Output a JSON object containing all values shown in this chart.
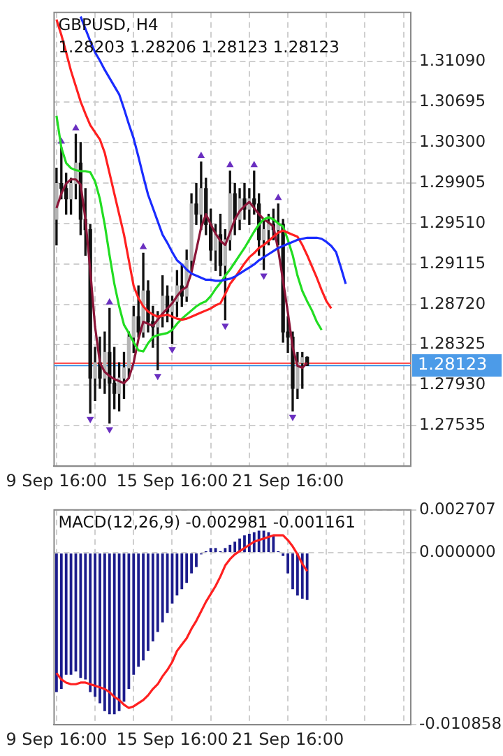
{
  "chart_data": [
    {
      "type": "candlestick",
      "title": "GBPUSD, H4",
      "subtitle": "1.28203 1.28206 1.28123 1.28123",
      "categories": [
        "9 Sep 16:00",
        null,
        null,
        null,
        null,
        null,
        null,
        null,
        null,
        null,
        null,
        null,
        null,
        null,
        null,
        null,
        null,
        null,
        null,
        null,
        null,
        null,
        null,
        null,
        "15 Sep 16:00",
        null,
        null,
        null,
        null,
        null,
        null,
        null,
        null,
        null,
        null,
        null,
        null,
        null,
        null,
        null,
        null,
        null,
        null,
        null,
        null,
        null,
        null,
        null,
        "21 Sep 16:00",
        null,
        null,
        null,
        null,
        null,
        null,
        null,
        null,
        null,
        null,
        null,
        null,
        null,
        null,
        null,
        null,
        null,
        null,
        null,
        null,
        null,
        null,
        null,
        null,
        null
      ],
      "ohlc": [
        [
          1.2955,
          1.3005,
          1.293,
          1.299
        ],
        [
          1.299,
          1.3025,
          1.2975,
          1.2985
        ],
        [
          1.2985,
          1.3,
          1.296,
          1.2975
        ],
        [
          1.2975,
          1.2995,
          1.296,
          1.299
        ],
        [
          1.299,
          1.3038,
          1.2975,
          1.301
        ],
        [
          1.301,
          1.303,
          1.294,
          1.2955
        ],
        [
          1.2955,
          1.2985,
          1.292,
          1.2945
        ],
        [
          1.2945,
          1.295,
          1.2766,
          1.28
        ],
        [
          1.28,
          1.283,
          1.2778,
          1.2815
        ],
        [
          1.2815,
          1.284,
          1.279,
          1.28
        ],
        [
          1.28,
          1.2845,
          1.2785,
          1.2825
        ],
        [
          1.2825,
          1.2868,
          1.2756,
          1.2795
        ],
        [
          1.2795,
          1.283,
          1.277,
          1.2785
        ],
        [
          1.2785,
          1.2815,
          1.2768,
          1.28
        ],
        [
          1.28,
          1.2825,
          1.278,
          1.281
        ],
        [
          1.281,
          1.2845,
          1.28,
          1.284
        ],
        [
          1.284,
          1.287,
          1.2825,
          1.286
        ],
        [
          1.286,
          1.289,
          1.284,
          1.2845
        ],
        [
          1.2845,
          1.2922,
          1.284,
          1.2885
        ],
        [
          1.2885,
          1.2895,
          1.2845,
          1.2855
        ],
        [
          1.2855,
          1.287,
          1.283,
          1.285
        ],
        [
          1.285,
          1.2865,
          1.2808,
          1.286
        ],
        [
          1.286,
          1.29,
          1.285,
          1.288
        ],
        [
          1.288,
          1.289,
          1.2855,
          1.2865
        ],
        [
          1.2865,
          1.288,
          1.2834,
          1.2875
        ],
        [
          1.2875,
          1.2905,
          1.286,
          1.289
        ],
        [
          1.289,
          1.291,
          1.287,
          1.288
        ],
        [
          1.288,
          1.2925,
          1.2875,
          1.2915
        ],
        [
          1.2915,
          1.298,
          1.2905,
          1.297
        ],
        [
          1.297,
          1.299,
          1.295,
          1.296
        ],
        [
          1.296,
          1.3011,
          1.2945,
          1.2985
        ],
        [
          1.2985,
          1.2995,
          1.294,
          1.295
        ],
        [
          1.295,
          1.2965,
          1.2915,
          1.2925
        ],
        [
          1.2925,
          1.295,
          1.2905,
          1.294
        ],
        [
          1.294,
          1.296,
          1.29,
          1.291
        ],
        [
          1.291,
          1.2945,
          1.2857,
          1.2935
        ],
        [
          1.2935,
          1.3002,
          1.2925,
          1.298
        ],
        [
          1.298,
          1.299,
          1.294,
          1.2955
        ],
        [
          1.2955,
          1.2985,
          1.2945,
          1.2975
        ],
        [
          1.2975,
          1.299,
          1.2955,
          1.2965
        ],
        [
          1.2965,
          1.2985,
          1.295,
          1.2975
        ],
        [
          1.2975,
          1.3002,
          1.296,
          1.297
        ],
        [
          1.297,
          1.298,
          1.292,
          1.2935
        ],
        [
          1.2935,
          1.2955,
          1.2906,
          1.2945
        ],
        [
          1.2945,
          1.296,
          1.293,
          1.295
        ],
        [
          1.295,
          1.2965,
          1.2935,
          1.2945
        ],
        [
          1.2945,
          1.297,
          1.293,
          1.295
        ],
        [
          1.295,
          1.2955,
          1.2835,
          1.2845
        ],
        [
          1.2845,
          1.286,
          1.2825,
          1.284
        ],
        [
          1.284,
          1.2845,
          1.2768,
          1.279
        ],
        [
          1.279,
          1.2825,
          1.278,
          1.2815
        ],
        [
          1.2815,
          1.2825,
          1.279,
          1.282
        ],
        [
          1.28203,
          1.28206,
          1.28123,
          1.28123
        ],
        null,
        null,
        null,
        null,
        null,
        null,
        null,
        null,
        null,
        null,
        null,
        null,
        null,
        null,
        null,
        null,
        null,
        null,
        null,
        null,
        null
      ],
      "series": [
        {
          "type": "line",
          "color": "#1a2cff",
          "values": [
            null,
            null,
            null,
            null,
            null,
            1.3153,
            1.3141,
            1.3129,
            1.3118,
            1.311,
            1.3101,
            1.3093,
            1.3085,
            1.3077,
            1.3063,
            1.3048,
            1.3034,
            1.3016,
            1.2997,
            1.2979,
            1.2966,
            1.2953,
            1.294,
            1.2932,
            1.2923,
            1.2915,
            1.2911,
            1.2906,
            1.2902,
            1.29,
            1.2898,
            1.2896,
            1.2896,
            1.2895,
            1.2895,
            1.2896,
            1.2897,
            1.2899,
            1.2902,
            1.2905,
            1.2908,
            1.2911,
            1.2915,
            1.2918,
            1.2921,
            1.2924,
            1.2927,
            1.2929,
            1.2931,
            1.2933,
            1.2935,
            1.2936,
            1.2937,
            1.2937,
            1.2937,
            1.2936,
            1.2933,
            1.2929,
            1.2923,
            1.2908,
            1.2892,
            null,
            null,
            null,
            null,
            null,
            null,
            null,
            null,
            null,
            null,
            null,
            null,
            null
          ]
        },
        {
          "type": "line",
          "color": "#ff2020",
          "values": [
            1.315,
            1.3135,
            1.3118,
            1.31,
            1.3085,
            1.307,
            1.3058,
            1.3047,
            1.304,
            1.3033,
            1.302,
            1.3,
            1.298,
            1.296,
            1.294,
            1.2915,
            1.289,
            1.2878,
            1.287,
            1.2865,
            1.2862,
            1.286,
            1.2861,
            1.2862,
            1.286,
            1.2858,
            1.2857,
            1.2858,
            1.286,
            1.2862,
            1.2864,
            1.2866,
            1.2868,
            1.2871,
            1.2873,
            1.2882,
            1.2892,
            1.2898,
            1.2905,
            1.2912,
            1.2918,
            1.2922,
            1.2927,
            1.293,
            1.2934,
            1.2938,
            1.2942,
            1.2944,
            1.2942,
            1.294,
            1.2938,
            1.293,
            1.292,
            1.2909,
            1.2898,
            1.2886,
            1.2875,
            1.2868,
            null,
            null,
            null,
            null,
            null,
            null,
            null,
            null,
            null,
            null,
            null,
            null,
            null,
            null,
            null,
            null
          ]
        },
        {
          "type": "line",
          "color": "#22dd22",
          "values": [
            1.3056,
            1.3025,
            1.301,
            1.3005,
            1.3003,
            1.3002,
            1.3002,
            1.3001,
            1.2992,
            1.2975,
            1.295,
            1.292,
            1.2892,
            1.287,
            1.2852,
            1.2844,
            1.2835,
            1.2827,
            1.2826,
            1.2834,
            1.284,
            1.2842,
            1.2843,
            1.2844,
            1.2847,
            1.2853,
            1.2858,
            1.2862,
            1.2866,
            1.287,
            1.2873,
            1.2875,
            1.288,
            1.2887,
            1.2893,
            1.29,
            1.2906,
            1.2913,
            1.292,
            1.2927,
            1.2935,
            1.2943,
            1.295,
            1.2955,
            1.2957,
            1.2955,
            1.2951,
            1.2948,
            1.2935,
            1.292,
            1.29,
            1.2885,
            1.2875,
            1.2866,
            1.2855,
            1.2847,
            null,
            null,
            null,
            null,
            null,
            null,
            null,
            null,
            null,
            null,
            null,
            null,
            null,
            null,
            null,
            null,
            null,
            null
          ]
        },
        {
          "type": "line",
          "color": "#8b1538",
          "values": [
            1.2966,
            1.298,
            1.299,
            1.2994,
            1.2994,
            1.2989,
            1.2955,
            1.2905,
            1.285,
            1.2815,
            1.2806,
            1.2802,
            1.2799,
            1.2797,
            1.2795,
            1.28,
            1.2815,
            1.2838,
            1.2855,
            1.2853,
            1.2851,
            1.2857,
            1.2863,
            1.2868,
            1.2873,
            1.288,
            1.2886,
            1.2889,
            1.2903,
            1.2925,
            1.2947,
            1.296,
            1.295,
            1.2941,
            1.2934,
            1.293,
            1.2942,
            1.2955,
            1.2963,
            1.2968,
            1.2972,
            1.2966,
            1.296,
            1.2955,
            1.2952,
            1.2948,
            1.2925,
            1.2895,
            1.2864,
            1.283,
            1.2812,
            1.281,
            1.2815,
            null,
            null,
            null,
            null,
            null,
            null,
            null,
            null,
            null,
            null,
            null,
            null,
            null,
            null,
            null,
            null,
            null,
            null,
            null,
            null,
            null
          ]
        },
        {
          "type": "scatter",
          "marker": "triangle",
          "color": "#6a2fc0",
          "values": [
            null,
            1.3031,
            null,
            null,
            1.3044,
            null,
            null,
            null,
            null,
            null,
            null,
            1.2874,
            null,
            null,
            null,
            null,
            null,
            null,
            1.2928,
            null,
            null,
            null,
            null,
            null,
            null,
            null,
            null,
            null,
            null,
            null,
            1.3017,
            null,
            null,
            null,
            null,
            null,
            1.3008,
            null,
            null,
            null,
            null,
            1.3008,
            null,
            null,
            null,
            null,
            1.2976,
            null,
            null,
            null,
            null,
            null,
            null,
            null,
            null,
            null,
            null,
            null,
            null,
            null,
            null,
            null,
            null,
            null,
            null,
            null,
            null,
            null,
            null,
            null,
            null,
            null,
            null,
            null
          ]
        },
        {
          "type": "scatter",
          "marker": "triangle",
          "color": "#6a2fc0",
          "values": [
            null,
            null,
            null,
            null,
            null,
            null,
            null,
            1.276,
            null,
            null,
            null,
            1.275,
            null,
            null,
            null,
            null,
            null,
            null,
            null,
            null,
            null,
            1.2802,
            null,
            null,
            1.2828,
            null,
            null,
            null,
            null,
            null,
            null,
            null,
            null,
            null,
            null,
            1.2851,
            null,
            null,
            null,
            null,
            null,
            null,
            null,
            1.29,
            null,
            null,
            null,
            null,
            null,
            1.2762,
            null,
            null,
            null,
            null,
            null,
            null,
            null,
            null,
            null,
            null,
            null,
            null,
            null,
            null,
            null,
            null,
            null,
            null,
            null,
            null,
            null,
            null,
            null,
            null
          ]
        }
      ],
      "ylim": [
        1.2714,
        1.3157
      ],
      "yticks": [
        {
          "value": 1.3109,
          "label": "1.31090"
        },
        {
          "value": 1.30695,
          "label": "1.30695"
        },
        {
          "value": 1.303,
          "label": "1.30300"
        },
        {
          "value": 1.29905,
          "label": "1.29905"
        },
        {
          "value": 1.2951,
          "label": "1.29510"
        },
        {
          "value": 1.29115,
          "label": "1.29115"
        },
        {
          "value": 1.2872,
          "label": "1.28720"
        },
        {
          "value": 1.28325,
          "label": "1.28325"
        },
        {
          "value": 1.2793,
          "label": "1.27930"
        },
        {
          "value": 1.27535,
          "label": "1.27535"
        }
      ],
      "ref_lines": [
        {
          "axis": "y",
          "value": 1.28145,
          "color": "#ff5555"
        },
        {
          "axis": "y",
          "value": 1.28123,
          "label": "1.28123",
          "color": "#4c9be8"
        }
      ],
      "grid": true
    },
    {
      "type": "bar",
      "title": "MACD(12,26,9) -0.002981 -0.001161",
      "categories": [
        "9 Sep 16:00",
        null,
        null,
        null,
        null,
        null,
        null,
        null,
        null,
        null,
        null,
        null,
        null,
        null,
        null,
        null,
        null,
        null,
        null,
        null,
        null,
        null,
        null,
        null,
        "15 Sep 16:00",
        null,
        null,
        null,
        null,
        null,
        null,
        null,
        null,
        null,
        null,
        null,
        null,
        null,
        null,
        null,
        null,
        null,
        null,
        null,
        null,
        null,
        null,
        null,
        "21 Sep 16:00",
        null,
        null,
        null,
        null,
        null,
        null,
        null,
        null,
        null,
        null,
        null,
        null,
        null,
        null,
        null,
        null,
        null,
        null,
        null,
        null,
        null,
        null,
        null,
        null,
        null
      ],
      "series": [
        {
          "color": "#1c1c8c",
          "values": [
            -0.0088,
            -0.0086,
            -0.0077,
            -0.0077,
            -0.0075,
            -0.0079,
            -0.008,
            -0.0088,
            -0.0091,
            -0.0095,
            -0.01,
            -0.0102,
            -0.0102,
            -0.01,
            -0.0094,
            -0.0086,
            -0.0077,
            -0.0072,
            -0.0068,
            -0.0062,
            -0.0056,
            -0.005,
            -0.0044,
            -0.0038,
            -0.0032,
            -0.0027,
            -0.0023,
            -0.0019,
            -0.0013,
            -0.0009,
            -0.0001,
            0.0001,
            0.0003,
            0.0003,
            0.0001,
            0.0003,
            0.0005,
            0.0007,
            0.0009,
            0.0011,
            0.0012,
            0.0013,
            0.0014,
            0.0014,
            0.0013,
            0.0011,
            0.0001,
            -0.0002,
            -0.0013,
            -0.0023,
            -0.0027,
            -0.0029,
            -0.002981,
            null,
            null,
            null,
            null,
            null,
            null,
            null,
            null,
            null,
            null,
            null,
            null,
            null,
            null,
            null,
            null,
            null,
            null,
            null,
            null,
            null
          ]
        },
        {
          "type": "line",
          "color": "#ff2020",
          "values": [
            -0.0076,
            -0.008,
            -0.0082,
            -0.0083,
            -0.0083,
            -0.0082,
            -0.0082,
            -0.0083,
            -0.0084,
            -0.0085,
            -0.0086,
            -0.0088,
            -0.0091,
            -0.0093,
            -0.0096,
            -0.0098,
            -0.0097,
            -0.0095,
            -0.0093,
            -0.009,
            -0.0086,
            -0.0083,
            -0.0078,
            -0.0074,
            -0.0069,
            -0.0062,
            -0.0058,
            -0.0054,
            -0.0048,
            -0.0043,
            -0.0037,
            -0.0031,
            -0.0026,
            -0.0021,
            -0.0015,
            -0.0008,
            -0.0004,
            -0.0001,
            0.0001,
            0.0003,
            0.0005,
            0.0007,
            0.0008,
            0.0009,
            0.001,
            0.0011,
            0.0011,
            0.0011,
            0.0008,
            0.0004,
            -0.0001,
            -0.0007,
            -0.001161,
            null,
            null,
            null,
            null,
            null,
            null,
            null,
            null,
            null,
            null,
            null,
            null,
            null,
            null,
            null,
            null,
            null,
            null,
            null,
            null,
            null
          ]
        }
      ],
      "ylim": [
        -0.010858,
        0.002707
      ],
      "yticks": [
        {
          "value": 0.002707,
          "label": "0.002707"
        },
        {
          "value": 0,
          "label": "0.000000"
        },
        {
          "value": -0.010858,
          "label": "-0.010858"
        }
      ],
      "grid": true
    }
  ]
}
